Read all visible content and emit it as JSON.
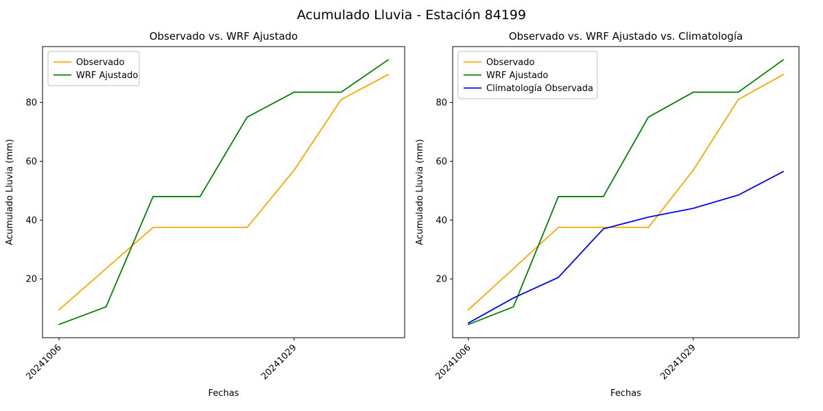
{
  "figure": {
    "title": "Acumulado Lluvia - Estación 84199",
    "background_color": "#ffffff"
  },
  "chart_data": [
    {
      "type": "line",
      "title": "Observado vs. WRF Ajustado",
      "xlabel": "Fechas",
      "ylabel": "Acumulado Lluvia (mm)",
      "x": [
        0,
        1,
        2,
        3,
        4,
        5,
        6,
        7
      ],
      "x_tick_positions": [
        0,
        5
      ],
      "x_tick_labels": [
        "20241006",
        "20241029"
      ],
      "x_tick_rotation": 45,
      "y_ticks": [
        20,
        40,
        60,
        80
      ],
      "xlim": [
        -0.35,
        7.35
      ],
      "ylim": [
        0,
        99
      ],
      "grid": false,
      "legend_position": "upper left",
      "series": [
        {
          "name": "Observado",
          "color": "#ffa500",
          "values": [
            9.5,
            23.5,
            37.5,
            37.5,
            37.5,
            57,
            81,
            89.5
          ]
        },
        {
          "name": "WRF Ajustado",
          "color": "#008000",
          "values": [
            4.5,
            10.5,
            48,
            48,
            75,
            83.5,
            83.5,
            94.5
          ]
        }
      ]
    },
    {
      "type": "line",
      "title": "Observado vs. WRF Ajustado vs. Climatología",
      "xlabel": "Fechas",
      "ylabel": "Acumulado Lluvia (mm)",
      "x": [
        0,
        1,
        2,
        3,
        4,
        5,
        6,
        7
      ],
      "x_tick_positions": [
        0,
        5
      ],
      "x_tick_labels": [
        "20241006",
        "20241029"
      ],
      "x_tick_rotation": 45,
      "y_ticks": [
        20,
        40,
        60,
        80
      ],
      "xlim": [
        -0.35,
        7.35
      ],
      "ylim": [
        0,
        99
      ],
      "grid": false,
      "legend_position": "upper left",
      "series": [
        {
          "name": "Observado",
          "color": "#ffa500",
          "values": [
            9.5,
            23.5,
            37.5,
            37.5,
            37.5,
            57,
            81,
            89.5
          ]
        },
        {
          "name": "WRF Ajustado",
          "color": "#008000",
          "values": [
            4.5,
            10.5,
            48,
            48,
            75,
            83.5,
            83.5,
            94.5
          ]
        },
        {
          "name": "Climatología Observada",
          "color": "#0000ff",
          "values": [
            5,
            13.5,
            20.5,
            37,
            41,
            44,
            48.5,
            56.5
          ]
        }
      ]
    }
  ]
}
